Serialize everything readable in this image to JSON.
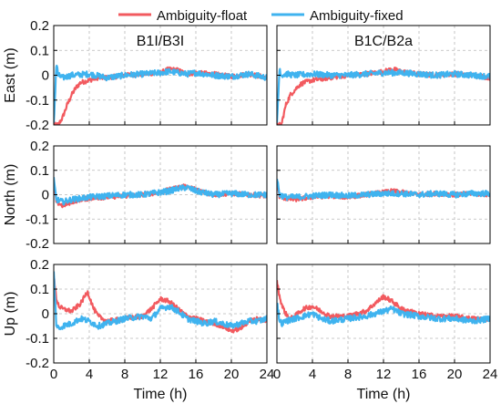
{
  "chart_data": {
    "type": "line",
    "legend": {
      "placement": "top",
      "entries": [
        {
          "name": "Ambiguity-float",
          "color": "#f25a5f"
        },
        {
          "name": "Ambiguity-fixed",
          "color": "#3fb3ef"
        }
      ]
    },
    "columns": [
      "B1I/B3I",
      "B1C/B2a"
    ],
    "rows": [
      {
        "ylabel": "East (m)",
        "ylim": [
          -0.2,
          0.2
        ],
        "yticks": [
          -0.2,
          -0.1,
          0,
          0.1,
          0.2
        ],
        "ytick_labels": [
          "-0.2",
          "-0.1",
          "0",
          "0.1",
          "0.2"
        ]
      },
      {
        "ylabel": "North (m)",
        "ylim": [
          -0.2,
          0.2
        ],
        "yticks": [
          -0.2,
          -0.1,
          0,
          0.1,
          0.2
        ],
        "ytick_labels": [
          "-0.2",
          "-0.1",
          "0",
          "0.1",
          "0.2"
        ]
      },
      {
        "ylabel": "Up (m)",
        "ylim": [
          -0.2,
          0.2
        ],
        "yticks": [
          -0.2,
          -0.1,
          0,
          0.1,
          0.2
        ],
        "ytick_labels": [
          "-0.2",
          "-0.1",
          "0",
          "0.1",
          "0.2"
        ]
      }
    ],
    "xlabel": "Time (h)",
    "xlim": [
      0,
      24
    ],
    "xticks": [
      0,
      4,
      8,
      12,
      16,
      20,
      24
    ],
    "xtick_labels": [
      "0",
      "4",
      "8",
      "12",
      "16",
      "20",
      "24"
    ],
    "grid": true,
    "panels": [
      {
        "row": 0,
        "col": 0,
        "series": [
          {
            "name": "Ambiguity-float",
            "x": [
              0,
              0.5,
              1,
              1.5,
              2,
              2.5,
              3,
              4,
              5,
              6,
              8,
              10,
              12,
              13,
              14,
              15,
              16,
              18,
              20,
              22,
              24
            ],
            "y": [
              -0.2,
              -0.2,
              -0.17,
              -0.12,
              -0.08,
              -0.05,
              -0.03,
              -0.02,
              -0.01,
              -0.01,
              0,
              0.005,
              0.01,
              0.025,
              0.02,
              0.005,
              0.01,
              0.005,
              -0.005,
              0.005,
              -0.01
            ]
          },
          {
            "name": "Ambiguity-fixed",
            "x": [
              0,
              0.3,
              0.5,
              1,
              2,
              4,
              6,
              8,
              10,
              12,
              13,
              14,
              15,
              16,
              18,
              20,
              22,
              24
            ],
            "y": [
              -0.2,
              0.05,
              0,
              -0.01,
              0,
              0.005,
              -0.01,
              0,
              0.005,
              0.01,
              0.015,
              0.01,
              0.005,
              0.01,
              0,
              -0.005,
              0.005,
              -0.01
            ]
          }
        ]
      },
      {
        "row": 0,
        "col": 1,
        "series": [
          {
            "name": "Ambiguity-float",
            "x": [
              0,
              0.5,
              1,
              1.5,
              2,
              2.5,
              3,
              4,
              6,
              8,
              10,
              12,
              13,
              14,
              16,
              18,
              20,
              22,
              24
            ],
            "y": [
              -0.2,
              -0.2,
              -0.12,
              -0.08,
              -0.06,
              -0.04,
              -0.03,
              -0.02,
              -0.01,
              0,
              0.005,
              0.015,
              0.025,
              0.015,
              0.005,
              0,
              0.005,
              0,
              -0.01
            ]
          },
          {
            "name": "Ambiguity-fixed",
            "x": [
              0,
              0.3,
              0.5,
              1,
              2,
              4,
              6,
              8,
              10,
              12,
              14,
              16,
              18,
              20,
              22,
              24
            ],
            "y": [
              -0.2,
              0.03,
              0,
              0.005,
              0,
              0.005,
              0,
              0,
              0.005,
              0.01,
              0.01,
              0.005,
              0,
              0.005,
              0,
              -0.005
            ]
          }
        ]
      },
      {
        "row": 1,
        "col": 0,
        "series": [
          {
            "name": "Ambiguity-float",
            "x": [
              0,
              0.3,
              1,
              2,
              3,
              4,
              6,
              8,
              10,
              12,
              13,
              14,
              15,
              16,
              18,
              20,
              22,
              24
            ],
            "y": [
              0.05,
              -0.03,
              -0.045,
              -0.03,
              -0.02,
              -0.015,
              -0.01,
              -0.005,
              0,
              0.01,
              0.02,
              0.03,
              0.035,
              0.02,
              0,
              0.005,
              0,
              -0.005
            ]
          },
          {
            "name": "Ambiguity-fixed",
            "x": [
              0,
              0.3,
              1,
              2,
              4,
              6,
              8,
              10,
              12,
              13,
              14,
              15,
              16,
              18,
              20,
              22,
              24
            ],
            "y": [
              0.06,
              -0.02,
              -0.03,
              -0.02,
              -0.01,
              -0.005,
              0,
              0,
              0.01,
              0.015,
              0.025,
              0.03,
              0.015,
              0,
              0.005,
              0,
              0
            ]
          }
        ]
      },
      {
        "row": 1,
        "col": 1,
        "series": [
          {
            "name": "Ambiguity-float",
            "x": [
              0,
              0.3,
              1,
              2,
              4,
              6,
              8,
              10,
              12,
              13,
              14,
              16,
              18,
              20,
              22,
              24
            ],
            "y": [
              0.06,
              -0.01,
              -0.015,
              -0.02,
              -0.01,
              -0.005,
              -0.01,
              0,
              0.01,
              0.015,
              0.01,
              0,
              0.005,
              0,
              0.005,
              0
            ]
          },
          {
            "name": "Ambiguity-fixed",
            "x": [
              0,
              0.3,
              1,
              2,
              4,
              6,
              8,
              10,
              12,
              14,
              16,
              18,
              20,
              22,
              24
            ],
            "y": [
              0.07,
              0,
              -0.01,
              -0.01,
              -0.005,
              0,
              -0.005,
              0,
              0.005,
              0.005,
              0,
              0.005,
              0,
              0.005,
              0.005
            ]
          }
        ]
      },
      {
        "row": 2,
        "col": 0,
        "series": [
          {
            "name": "Ambiguity-float",
            "x": [
              0,
              0.3,
              0.6,
              1,
              2,
              3,
              3.8,
              4.5,
              5,
              6,
              8,
              10,
              11,
              12,
              13,
              14,
              15,
              16,
              17,
              18,
              19,
              20,
              21,
              22,
              23,
              24
            ],
            "y": [
              0.15,
              0.06,
              0.03,
              0.02,
              0.01,
              0.04,
              0.09,
              0.02,
              -0.01,
              -0.03,
              -0.02,
              -0.01,
              0.02,
              0.06,
              0.05,
              0.02,
              -0.01,
              -0.02,
              -0.03,
              -0.04,
              -0.05,
              -0.07,
              -0.06,
              -0.03,
              -0.02,
              -0.03
            ]
          },
          {
            "name": "Ambiguity-fixed",
            "x": [
              0,
              0.3,
              0.6,
              1,
              2,
              3,
              4,
              5,
              6,
              8,
              10,
              11,
              12,
              13,
              14,
              15,
              16,
              17,
              18,
              19,
              20,
              21,
              22,
              23,
              24
            ],
            "y": [
              0.17,
              -0.05,
              -0.06,
              -0.05,
              -0.04,
              -0.02,
              -0.03,
              -0.05,
              -0.04,
              -0.02,
              -0.01,
              -0.02,
              0.02,
              0.03,
              0.01,
              -0.02,
              -0.03,
              -0.04,
              -0.03,
              -0.04,
              -0.05,
              -0.04,
              -0.03,
              -0.03,
              -0.02
            ]
          }
        ]
      },
      {
        "row": 2,
        "col": 1,
        "series": [
          {
            "name": "Ambiguity-float",
            "x": [
              0,
              0.3,
              0.6,
              1,
              1.5,
              2,
              3,
              4,
              5,
              6,
              8,
              10,
              11,
              12,
              13,
              14,
              16,
              18,
              20,
              22,
              24
            ],
            "y": [
              0.13,
              0.07,
              0.03,
              0.0,
              -0.02,
              -0.01,
              0.02,
              0.03,
              0.01,
              -0.01,
              -0.01,
              0.01,
              0.04,
              0.07,
              0.05,
              0.02,
              0,
              -0.01,
              -0.01,
              -0.02,
              -0.02
            ]
          },
          {
            "name": "Ambiguity-fixed",
            "x": [
              0,
              0.3,
              0.6,
              1,
              2,
              3,
              4,
              5,
              6,
              8,
              10,
              12,
              13,
              14,
              16,
              18,
              20,
              22,
              24
            ],
            "y": [
              0.05,
              -0.03,
              -0.04,
              -0.03,
              -0.02,
              -0.01,
              0,
              -0.02,
              -0.03,
              -0.02,
              -0.01,
              0.01,
              0.02,
              0,
              -0.01,
              -0.02,
              -0.02,
              -0.03,
              -0.02
            ]
          }
        ]
      }
    ]
  }
}
